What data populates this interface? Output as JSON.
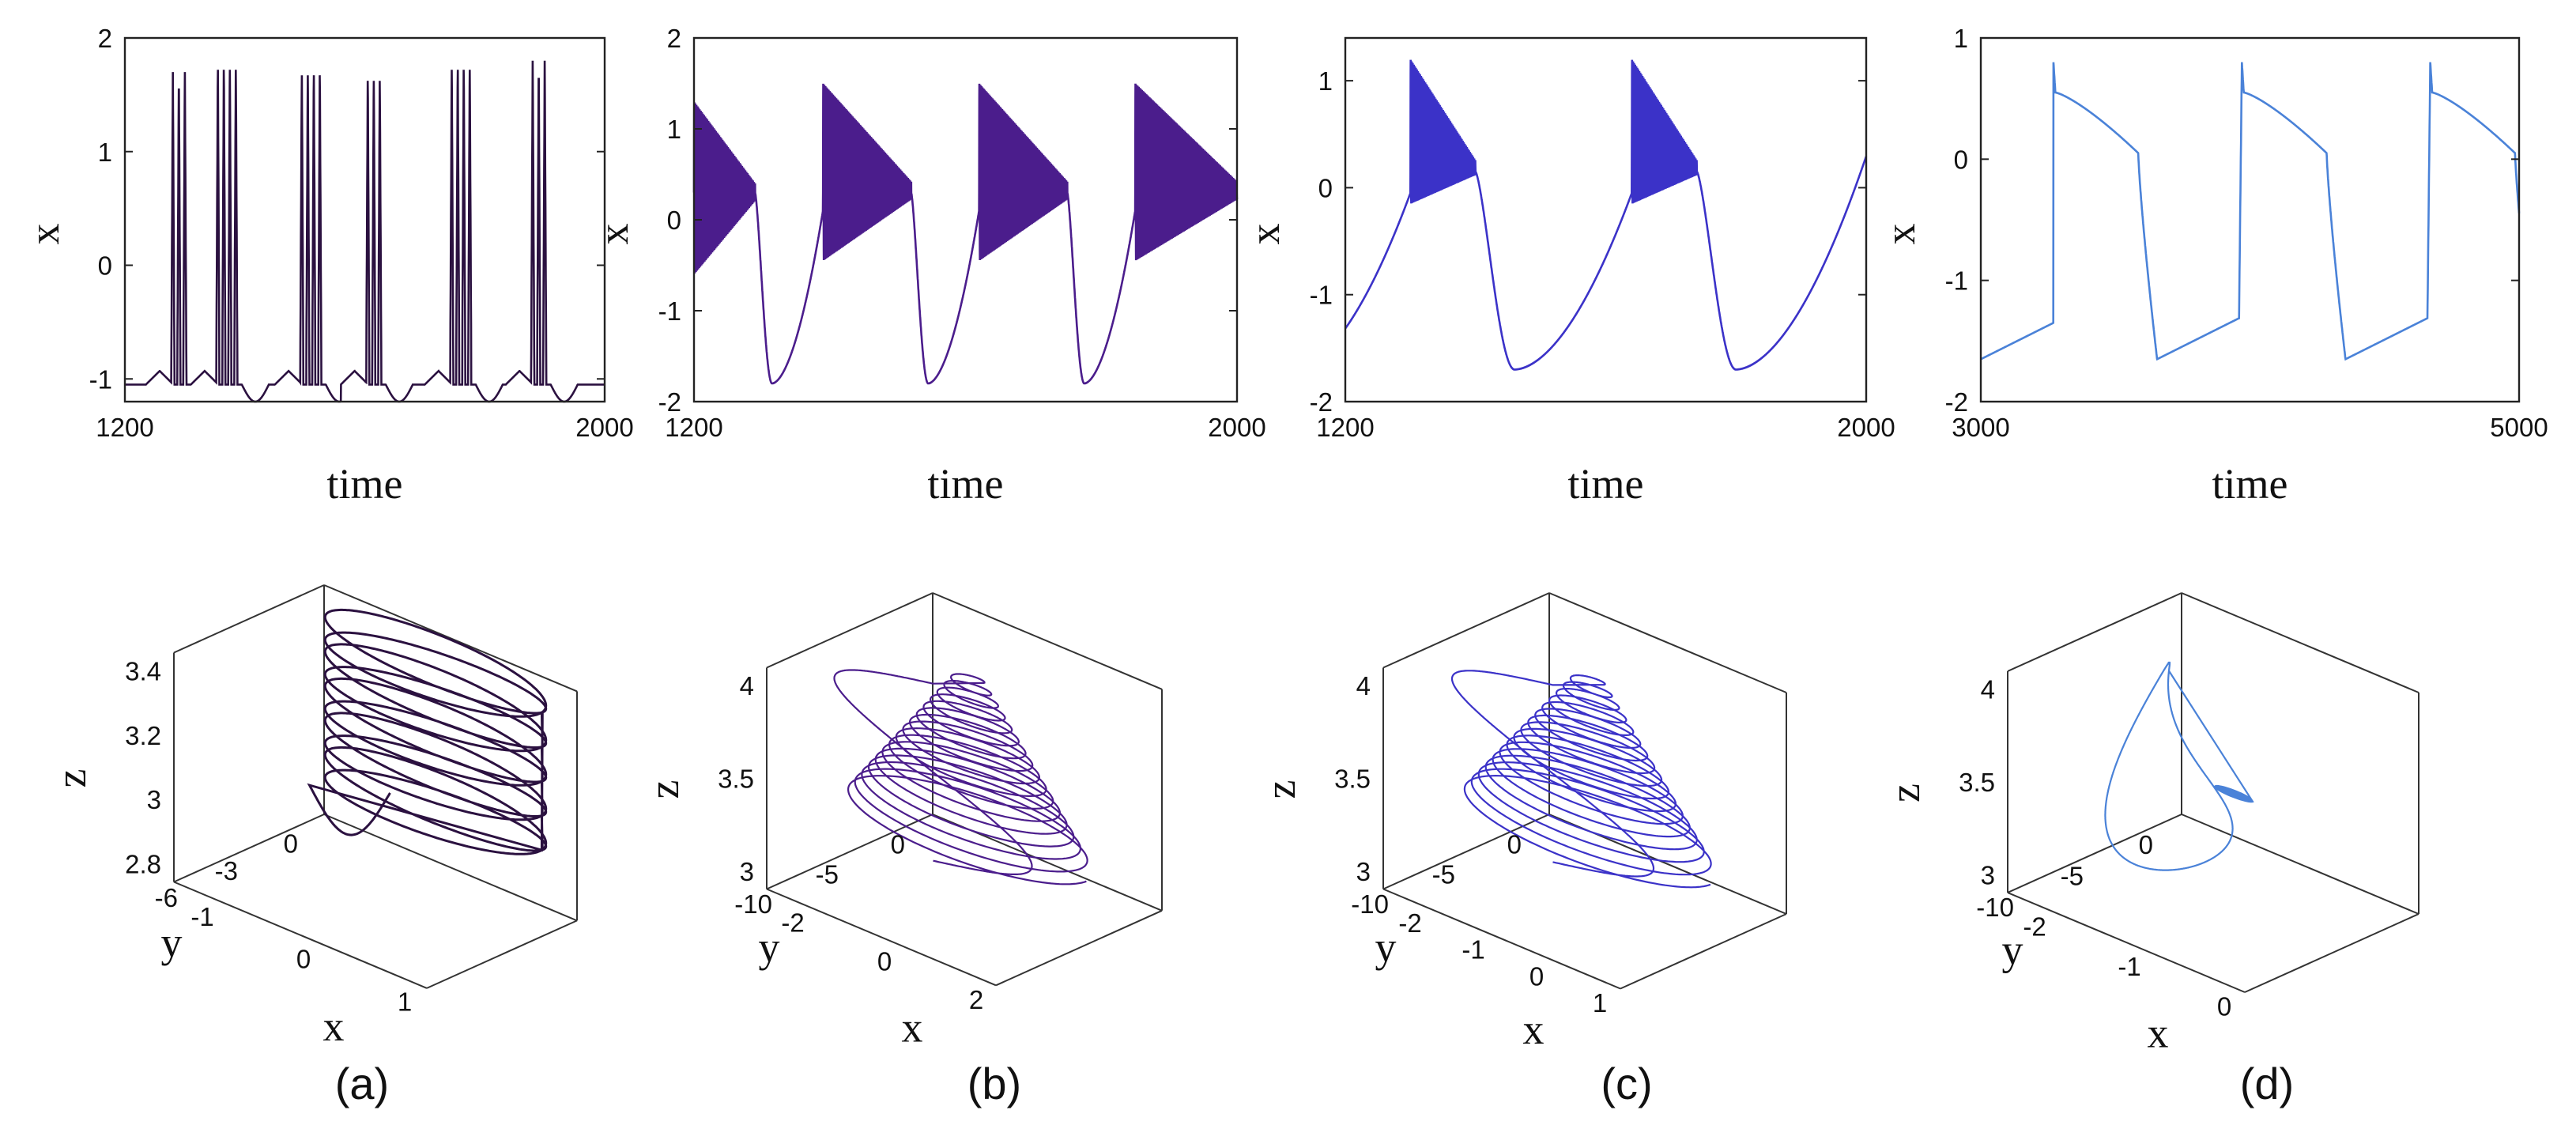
{
  "chart_data": [
    {
      "id": "a-top",
      "type": "line",
      "panel": "(a)",
      "xlabel": "time",
      "ylabel": "x",
      "xlim": [
        1200,
        2000
      ],
      "ylim": [
        -1.2,
        2
      ],
      "xticks": [
        1200,
        2000
      ],
      "yticks": [
        -1,
        0,
        1,
        2
      ],
      "color": "#2b1140",
      "regime": "bursting",
      "bursts": [
        {
          "t": 1280,
          "spikes": 3,
          "peak": 1.7
        },
        {
          "t": 1355,
          "spikes": 4,
          "peak": 1.8
        },
        {
          "t": 1495,
          "spikes": 4,
          "peak": 1.75
        },
        {
          "t": 1605,
          "spikes": 3,
          "peak": 1.7
        },
        {
          "t": 1745,
          "spikes": 4,
          "peak": 1.8
        },
        {
          "t": 1880,
          "spikes": 3,
          "peak": 1.8
        }
      ]
    },
    {
      "id": "b-top",
      "type": "line",
      "panel": "(b)",
      "xlabel": "time",
      "ylabel": "x",
      "xlim": [
        1200,
        2000
      ],
      "ylim": [
        -2,
        2
      ],
      "xticks": [
        1200,
        2000
      ],
      "yticks": [
        -2,
        -1,
        0,
        1,
        2
      ],
      "color": "#4b1d8c",
      "regime": "fast oscillation bursts",
      "bursts": [
        {
          "start": 1200,
          "end": 1290,
          "env_top": 1.3,
          "env_bottom": -0.6,
          "mid": 0.3
        },
        {
          "start": 1390,
          "end": 1520,
          "env_top": 1.5,
          "env_bottom": -0.45,
          "mid": 0.3
        },
        {
          "start": 1620,
          "end": 1750,
          "env_top": 1.5,
          "env_bottom": -0.45,
          "mid": 0.3
        },
        {
          "start": 1850,
          "end": 2000,
          "env_top": 1.5,
          "env_bottom": -0.45,
          "mid": 0.3
        }
      ],
      "trough": -1.8
    },
    {
      "id": "c-top",
      "type": "line",
      "panel": "(c)",
      "xlabel": "time",
      "ylabel": "x",
      "xlim": [
        1200,
        2000
      ],
      "ylim": [
        -2,
        1.4
      ],
      "xticks": [
        1200,
        2000
      ],
      "yticks": [
        -2,
        -1,
        0,
        1
      ],
      "color": "#3b32c8",
      "regime": "fast oscillation bursts",
      "bursts": [
        {
          "start": 1300,
          "end": 1400,
          "env_top": 1.2,
          "env_bottom": -0.15,
          "mid": 0.15
        },
        {
          "start": 1640,
          "end": 1740,
          "env_top": 1.2,
          "env_bottom": -0.15,
          "mid": 0.15
        }
      ],
      "trough": -1.7
    },
    {
      "id": "d-top",
      "type": "line",
      "panel": "(d)",
      "xlabel": "time",
      "ylabel": "x",
      "xlim": [
        3000,
        5000
      ],
      "ylim": [
        -2,
        1
      ],
      "xticks": [
        3000,
        5000
      ],
      "yticks": [
        -2,
        -1,
        0,
        1
      ],
      "color": "#4a82d8",
      "regime": "periodic spiking",
      "spikes": [
        3270,
        3970,
        4670
      ],
      "peak": 0.8,
      "trough": -1.65
    },
    {
      "id": "a-bot",
      "type": "line3d",
      "panel": "(a)",
      "xlabel": "x",
      "ylabel": "y",
      "zlabel": "z",
      "xticks": [
        -1,
        0,
        1
      ],
      "yticks": [
        0,
        -3,
        -6
      ],
      "zticks": [
        2.8,
        3,
        3.2,
        3.4
      ],
      "color": "#2b1140",
      "attractor": "stacked loops"
    },
    {
      "id": "b-bot",
      "type": "line3d",
      "panel": "(b)",
      "xlabel": "x",
      "ylabel": "y",
      "zlabel": "z",
      "xticks": [
        -2,
        0,
        2
      ],
      "yticks": [
        0,
        -5,
        -10
      ],
      "zticks": [
        3,
        3.5,
        4
      ],
      "color": "#4b1d8c",
      "attractor": "cone spiral"
    },
    {
      "id": "c-bot",
      "type": "line3d",
      "panel": "(c)",
      "xlabel": "x",
      "ylabel": "y",
      "zlabel": "z",
      "xticks": [
        -2,
        -1,
        0,
        1
      ],
      "yticks": [
        0,
        -5,
        -10
      ],
      "zticks": [
        3,
        3.5,
        4
      ],
      "color": "#3b32c8",
      "attractor": "cone spiral with loop"
    },
    {
      "id": "d-bot",
      "type": "line3d",
      "panel": "(d)",
      "xlabel": "x",
      "ylabel": "y",
      "zlabel": "z",
      "xticks": [
        -2,
        -1,
        0
      ],
      "yticks": [
        0,
        -5,
        -10
      ],
      "zticks": [
        3,
        3.5,
        4
      ],
      "color": "#4a82d8",
      "attractor": "figure-eight limit cycle"
    }
  ],
  "panel_labels": [
    "(a)",
    "(b)",
    "(c)",
    "(d)"
  ]
}
